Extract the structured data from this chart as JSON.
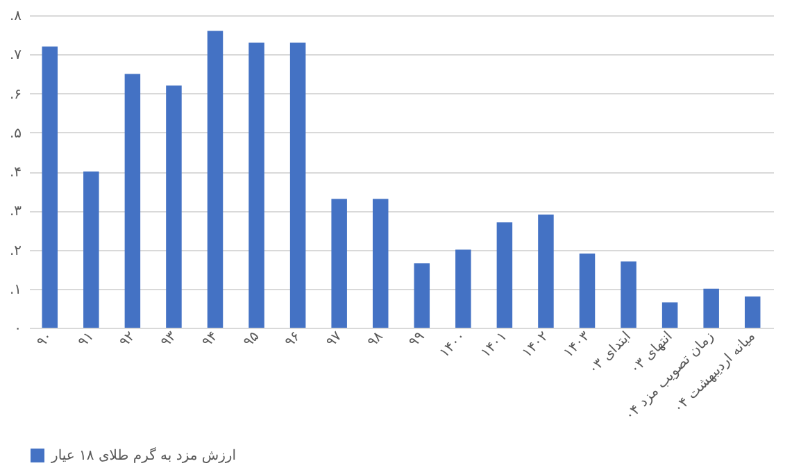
{
  "chart_data": {
    "type": "bar",
    "categories": [
      "۹۰",
      "۹۱",
      "۹۲",
      "۹۳",
      "۹۴",
      "۹۵",
      "۹۶",
      "۹۷",
      "۹۸",
      "۹۹",
      "۱۴۰۰",
      "۱۴۰۱",
      "۱۴۰۲",
      "۱۴۰۳",
      "ابتدای ۰۳",
      "انتهای ۰۳",
      "زمان تصویب مزد ۰۴",
      "میانه اردیبهشت ۰۴"
    ],
    "series": [
      {
        "name": "ارزش مزد به گرم طلای ۱۸ عیار",
        "color": "#4472c4",
        "values": [
          0.72,
          0.4,
          0.65,
          0.62,
          0.76,
          0.73,
          0.73,
          0.33,
          0.33,
          0.165,
          0.2,
          0.27,
          0.29,
          0.19,
          0.17,
          0.065,
          0.1,
          0.08
        ]
      }
    ],
    "ylim": [
      0,
      0.8
    ],
    "yticks": [
      {
        "value": 0,
        "label": "۰"
      },
      {
        "value": 0.1,
        "label": ".۱"
      },
      {
        "value": 0.2,
        "label": ".۲"
      },
      {
        "value": 0.3,
        "label": ".۳"
      },
      {
        "value": 0.4,
        "label": ".۴"
      },
      {
        "value": 0.5,
        "label": ".۵"
      },
      {
        "value": 0.6,
        "label": ".۶"
      },
      {
        "value": 0.7,
        "label": ".۷"
      },
      {
        "value": 0.8,
        "label": ".۸"
      }
    ],
    "grid": "y",
    "legend": "bottom"
  }
}
